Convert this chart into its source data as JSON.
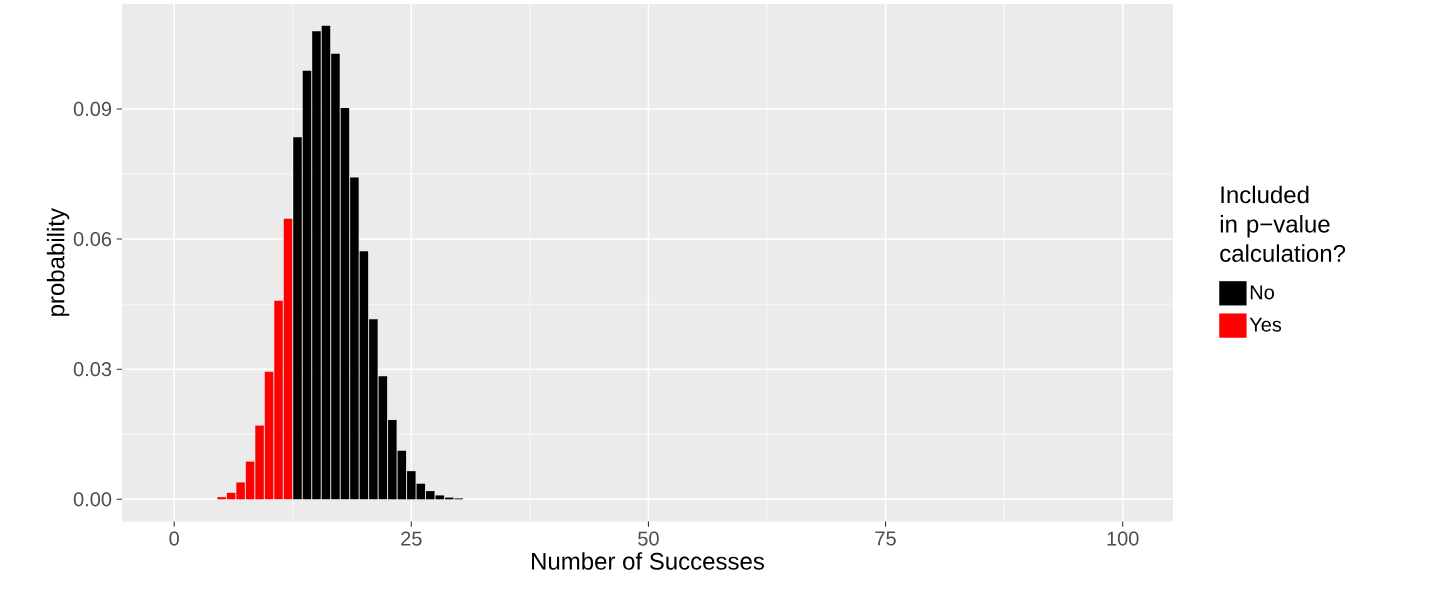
{
  "chart_data": {
    "type": "bar",
    "xlabel": "Number of Successes",
    "ylabel": "probability",
    "legend_title": "Included in p−value calculation?",
    "x": [
      0,
      1,
      2,
      3,
      4,
      5,
      6,
      7,
      8,
      9,
      10,
      11,
      12,
      13,
      14,
      15,
      16,
      17,
      18,
      19,
      20,
      21,
      22,
      23,
      24,
      25,
      26,
      27,
      28,
      29,
      30,
      31,
      32,
      33,
      34,
      35,
      36,
      37,
      38,
      39,
      40,
      41,
      42,
      43,
      44,
      45,
      46,
      47,
      48,
      49,
      50,
      51,
      52,
      53,
      54,
      55,
      56,
      57,
      58,
      59,
      60,
      61,
      62,
      63,
      64,
      65,
      66,
      67,
      68,
      69,
      70,
      71,
      72,
      73,
      74,
      75,
      76,
      77,
      78,
      79,
      80,
      81,
      82,
      83,
      84,
      85,
      86,
      87,
      88,
      89,
      90,
      91,
      92,
      93,
      94,
      95,
      96,
      97,
      98,
      99,
      100
    ],
    "series": [
      {
        "name": "No",
        "color": "#000000",
        "values": [
          null,
          null,
          null,
          null,
          null,
          null,
          null,
          null,
          null,
          null,
          null,
          null,
          null,
          0.0835,
          0.0988,
          0.1079,
          0.1092,
          0.1027,
          0.0902,
          0.0742,
          0.0572,
          0.0415,
          0.0284,
          0.0183,
          0.0112,
          0.0065,
          0.0036,
          0.0019,
          0.0009,
          0.0004,
          0.0002,
          0,
          0,
          0,
          0,
          0,
          0,
          0,
          0,
          0,
          0,
          0,
          0,
          0,
          0,
          0,
          0,
          0,
          0,
          0,
          0,
          0,
          0,
          0,
          0,
          0,
          0,
          0,
          0,
          0,
          0,
          0,
          0,
          0,
          0,
          0,
          0,
          0,
          0,
          0,
          0,
          0,
          0,
          0,
          0,
          0,
          0,
          0,
          0,
          0,
          0,
          0,
          0,
          0,
          0,
          0,
          0,
          0,
          0,
          0,
          0,
          0,
          0,
          0,
          0,
          0,
          0,
          0,
          0,
          0,
          0
        ]
      },
      {
        "name": "Yes",
        "color": "#ff0000",
        "values": [
          0,
          0,
          0,
          0,
          0,
          0.0005,
          0.0015,
          0.0039,
          0.0087,
          0.017,
          0.0294,
          0.0458,
          0.0647,
          null,
          null,
          null,
          null,
          null,
          null,
          null,
          null,
          null,
          null,
          null,
          null,
          null,
          null,
          null,
          null,
          null,
          null,
          null,
          null,
          null,
          null,
          null,
          null,
          null,
          null,
          null,
          null,
          null,
          null,
          null,
          null,
          null,
          null,
          null,
          null,
          null,
          null,
          null,
          null,
          null,
          null,
          null,
          null,
          null,
          null,
          null,
          null,
          null,
          null,
          null,
          null,
          null,
          null,
          null,
          null,
          null,
          null,
          null,
          null,
          null,
          null,
          null,
          null,
          null,
          null,
          null,
          null,
          null,
          null,
          null,
          null,
          null,
          null,
          null,
          null,
          null,
          null,
          null,
          null,
          null,
          null,
          null,
          null,
          null,
          null,
          null,
          null
        ]
      }
    ],
    "xlim": [
      -5.5,
      105.3
    ],
    "ylim": [
      -0.0051,
      0.1142
    ],
    "xticks": [
      0,
      25,
      50,
      75,
      100
    ],
    "yticks": [
      {
        "value": 0,
        "label": "0.00"
      },
      {
        "value": 0.03,
        "label": "0.03"
      },
      {
        "value": 0.06,
        "label": "0.06"
      },
      {
        "value": 0.09,
        "label": "0.09"
      }
    ],
    "grid": true,
    "legend": "right"
  }
}
